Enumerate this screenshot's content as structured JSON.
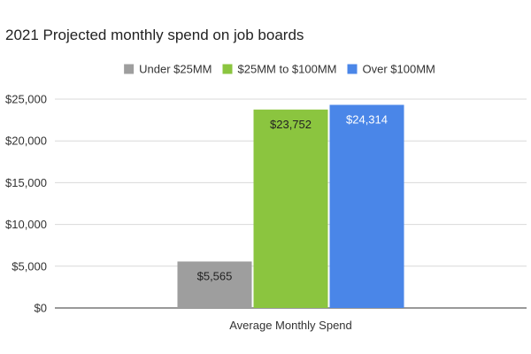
{
  "chart_data": {
    "type": "bar",
    "title": "2021 Projected monthly spend on job boards",
    "xlabel": "",
    "ylabel": "",
    "categories": [
      "Average Monthly Spend"
    ],
    "series": [
      {
        "name": "Under $25MM",
        "values": [
          5565
        ],
        "color": "#9e9e9e",
        "label_color": "#222222",
        "labels": [
          "$5,565"
        ]
      },
      {
        "name": "$25MM to $100MM",
        "values": [
          23752
        ],
        "color": "#8bc53f",
        "label_color": "#222222",
        "labels": [
          "$23,752"
        ]
      },
      {
        "name": "Over $100MM",
        "values": [
          24314
        ],
        "color": "#4a86e8",
        "label_color": "#ffffff",
        "labels": [
          "$24,314"
        ]
      }
    ],
    "ylim": [
      0,
      25000
    ],
    "yticks": [
      0,
      5000,
      10000,
      15000,
      20000,
      25000
    ],
    "ytick_labels": [
      "$0",
      "$5,000",
      "$10,000",
      "$15,000",
      "$20,000",
      "$25,000"
    ],
    "grid": true,
    "legend": "top"
  }
}
